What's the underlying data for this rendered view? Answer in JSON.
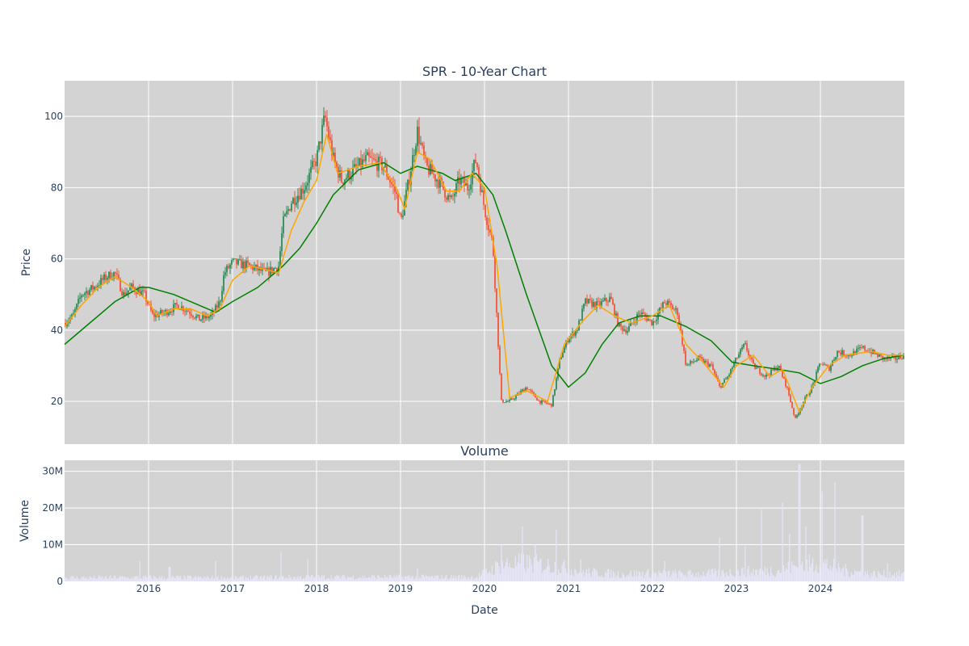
{
  "chart_data": [
    {
      "type": "candlestick",
      "title": "SPR - 10-Year Chart",
      "ylabel": "Price",
      "ylim": [
        8,
        110
      ],
      "yticks": [
        20,
        40,
        60,
        80,
        100
      ],
      "xlim": [
        2015.0,
        2025.0
      ],
      "xticks": [
        "2016",
        "2017",
        "2018",
        "2019",
        "2020",
        "2021",
        "2022",
        "2023",
        "2024"
      ],
      "grid": true,
      "colors": {
        "background": "#d3d3d3",
        "grid": "#ffffff",
        "up": "#2e8b57",
        "down": "#ef553b",
        "sma_short": "#ffa500",
        "sma_long": "#008000"
      },
      "price_path": [
        [
          2015.0,
          42
        ],
        [
          2015.1,
          44
        ],
        [
          2015.2,
          50
        ],
        [
          2015.35,
          52
        ],
        [
          2015.5,
          55
        ],
        [
          2015.6,
          56
        ],
        [
          2015.7,
          50
        ],
        [
          2015.8,
          52
        ],
        [
          2015.95,
          50
        ],
        [
          2016.05,
          44
        ],
        [
          2016.2,
          45
        ],
        [
          2016.35,
          47
        ],
        [
          2016.5,
          45
        ],
        [
          2016.6,
          43
        ],
        [
          2016.75,
          44
        ],
        [
          2016.85,
          48
        ],
        [
          2016.9,
          56
        ],
        [
          2017.0,
          59
        ],
        [
          2017.2,
          58
        ],
        [
          2017.4,
          56
        ],
        [
          2017.55,
          58
        ],
        [
          2017.6,
          70
        ],
        [
          2017.7,
          76
        ],
        [
          2017.85,
          80
        ],
        [
          2018.0,
          88
        ],
        [
          2018.1,
          100
        ],
        [
          2018.2,
          88
        ],
        [
          2018.3,
          82
        ],
        [
          2018.45,
          85
        ],
        [
          2018.6,
          88
        ],
        [
          2018.8,
          86
        ],
        [
          2018.95,
          78
        ],
        [
          2019.0,
          70
        ],
        [
          2019.1,
          82
        ],
        [
          2019.2,
          96
        ],
        [
          2019.3,
          86
        ],
        [
          2019.45,
          82
        ],
        [
          2019.6,
          76
        ],
        [
          2019.7,
          82
        ],
        [
          2019.8,
          80
        ],
        [
          2019.9,
          88
        ],
        [
          2020.0,
          74
        ],
        [
          2020.1,
          64
        ],
        [
          2020.2,
          20
        ],
        [
          2020.3,
          20
        ],
        [
          2020.4,
          22
        ],
        [
          2020.5,
          24
        ],
        [
          2020.65,
          20
        ],
        [
          2020.8,
          19
        ],
        [
          2020.9,
          32
        ],
        [
          2021.0,
          38
        ],
        [
          2021.1,
          40
        ],
        [
          2021.2,
          48
        ],
        [
          2021.35,
          47
        ],
        [
          2021.5,
          49
        ],
        [
          2021.6,
          41
        ],
        [
          2021.7,
          40
        ],
        [
          2021.85,
          45
        ],
        [
          2022.0,
          42
        ],
        [
          2022.15,
          48
        ],
        [
          2022.3,
          45
        ],
        [
          2022.4,
          30
        ],
        [
          2022.55,
          32
        ],
        [
          2022.7,
          30
        ],
        [
          2022.8,
          24
        ],
        [
          2022.9,
          27
        ],
        [
          2023.0,
          32
        ],
        [
          2023.1,
          36
        ],
        [
          2023.2,
          30
        ],
        [
          2023.35,
          27
        ],
        [
          2023.5,
          30
        ],
        [
          2023.6,
          24
        ],
        [
          2023.7,
          15
        ],
        [
          2023.8,
          20
        ],
        [
          2023.9,
          24
        ],
        [
          2024.0,
          31
        ],
        [
          2024.1,
          29
        ],
        [
          2024.2,
          34
        ],
        [
          2024.35,
          33
        ],
        [
          2024.5,
          35
        ],
        [
          2024.6,
          34
        ],
        [
          2024.75,
          32
        ],
        [
          2024.9,
          32
        ],
        [
          2025.0,
          33
        ]
      ],
      "sma_short_path": [
        [
          2015.0,
          41
        ],
        [
          2015.2,
          47
        ],
        [
          2015.4,
          52
        ],
        [
          2015.6,
          55
        ],
        [
          2015.8,
          52
        ],
        [
          2016.0,
          48
        ],
        [
          2016.1,
          44
        ],
        [
          2016.3,
          46
        ],
        [
          2016.5,
          46
        ],
        [
          2016.7,
          44
        ],
        [
          2016.85,
          46
        ],
        [
          2017.0,
          54
        ],
        [
          2017.2,
          58
        ],
        [
          2017.4,
          57
        ],
        [
          2017.55,
          56
        ],
        [
          2017.7,
          68
        ],
        [
          2017.85,
          76
        ],
        [
          2018.0,
          82
        ],
        [
          2018.12,
          95
        ],
        [
          2018.25,
          84
        ],
        [
          2018.5,
          86
        ],
        [
          2018.75,
          87
        ],
        [
          2018.95,
          80
        ],
        [
          2019.05,
          74
        ],
        [
          2019.2,
          90
        ],
        [
          2019.35,
          88
        ],
        [
          2019.55,
          79
        ],
        [
          2019.7,
          79
        ],
        [
          2019.85,
          84
        ],
        [
          2020.0,
          80
        ],
        [
          2020.15,
          58
        ],
        [
          2020.3,
          21
        ],
        [
          2020.5,
          23
        ],
        [
          2020.75,
          20
        ],
        [
          2020.95,
          36
        ],
        [
          2021.15,
          42
        ],
        [
          2021.35,
          47
        ],
        [
          2021.55,
          44
        ],
        [
          2021.75,
          42
        ],
        [
          2022.0,
          44
        ],
        [
          2022.2,
          47
        ],
        [
          2022.4,
          36
        ],
        [
          2022.6,
          31
        ],
        [
          2022.85,
          24
        ],
        [
          2023.0,
          30
        ],
        [
          2023.2,
          33
        ],
        [
          2023.4,
          27
        ],
        [
          2023.55,
          29
        ],
        [
          2023.75,
          17
        ],
        [
          2023.9,
          24
        ],
        [
          2024.1,
          30
        ],
        [
          2024.3,
          33
        ],
        [
          2024.6,
          34
        ],
        [
          2024.8,
          33
        ],
        [
          2025.0,
          33
        ]
      ],
      "sma_long_path": [
        [
          2015.0,
          36
        ],
        [
          2015.3,
          42
        ],
        [
          2015.6,
          48
        ],
        [
          2015.9,
          52
        ],
        [
          2016.0,
          52
        ],
        [
          2016.3,
          50
        ],
        [
          2016.6,
          47
        ],
        [
          2016.8,
          45
        ],
        [
          2017.0,
          48
        ],
        [
          2017.3,
          52
        ],
        [
          2017.6,
          58
        ],
        [
          2017.8,
          63
        ],
        [
          2018.0,
          70
        ],
        [
          2018.2,
          78
        ],
        [
          2018.5,
          85
        ],
        [
          2018.8,
          87
        ],
        [
          2019.0,
          84
        ],
        [
          2019.2,
          86
        ],
        [
          2019.5,
          84
        ],
        [
          2019.65,
          82
        ],
        [
          2019.9,
          84
        ],
        [
          2020.1,
          78
        ],
        [
          2020.25,
          68
        ],
        [
          2020.5,
          50
        ],
        [
          2020.8,
          30
        ],
        [
          2021.0,
          24
        ],
        [
          2021.2,
          28
        ],
        [
          2021.4,
          36
        ],
        [
          2021.6,
          42
        ],
        [
          2021.85,
          44
        ],
        [
          2022.1,
          44
        ],
        [
          2022.4,
          41
        ],
        [
          2022.7,
          37
        ],
        [
          2022.95,
          31
        ],
        [
          2023.2,
          30
        ],
        [
          2023.5,
          29
        ],
        [
          2023.75,
          28
        ],
        [
          2024.0,
          25
        ],
        [
          2024.25,
          27
        ],
        [
          2024.5,
          30
        ],
        [
          2024.75,
          32
        ],
        [
          2025.0,
          33
        ]
      ]
    },
    {
      "type": "bar",
      "title": "Volume",
      "xlabel": "Date",
      "ylabel": "Volume",
      "ylim": [
        0,
        33000000
      ],
      "yticks": [
        0,
        10000000,
        20000000,
        30000000
      ],
      "ytick_labels": [
        "0",
        "10M",
        "20M",
        "30M"
      ],
      "xlim": [
        2015.0,
        2025.0
      ],
      "xticks": [
        "2016",
        "2017",
        "2018",
        "2019",
        "2020",
        "2021",
        "2022",
        "2023",
        "2024"
      ],
      "grid": true,
      "colors": {
        "background": "#d3d3d3",
        "grid": "#ffffff",
        "bar": "#e6e6fa"
      },
      "baseline_by_period": [
        [
          2015.0,
          1000000
        ],
        [
          2016.0,
          1100000
        ],
        [
          2017.0,
          1000000
        ],
        [
          2018.0,
          1200000
        ],
        [
          2019.0,
          1200000
        ],
        [
          2019.9,
          1200000
        ],
        [
          2020.2,
          4500000
        ],
        [
          2020.5,
          5000000
        ],
        [
          2020.9,
          4000000
        ],
        [
          2021.2,
          2500000
        ],
        [
          2021.6,
          2000000
        ],
        [
          2022.0,
          2200000
        ],
        [
          2022.5,
          2000000
        ],
        [
          2023.0,
          2500000
        ],
        [
          2023.5,
          3000000
        ],
        [
          2023.8,
          4500000
        ],
        [
          2024.0,
          5000000
        ],
        [
          2024.3,
          3000000
        ],
        [
          2024.6,
          2000000
        ],
        [
          2025.0,
          2000000
        ]
      ],
      "spikes": [
        [
          2015.9,
          5500000
        ],
        [
          2016.25,
          4000000
        ],
        [
          2016.8,
          5500000
        ],
        [
          2017.58,
          8000000
        ],
        [
          2017.9,
          6000000
        ],
        [
          2019.2,
          3500000
        ],
        [
          2020.2,
          10000000
        ],
        [
          2020.45,
          15000000
        ],
        [
          2020.6,
          10000000
        ],
        [
          2020.85,
          14000000
        ],
        [
          2021.15,
          6000000
        ],
        [
          2022.15,
          5500000
        ],
        [
          2022.8,
          12000000
        ],
        [
          2023.1,
          9500000
        ],
        [
          2023.3,
          19500000
        ],
        [
          2023.55,
          21500000
        ],
        [
          2023.63,
          13000000
        ],
        [
          2023.75,
          32000000
        ],
        [
          2023.83,
          15000000
        ],
        [
          2024.02,
          24500000
        ],
        [
          2024.17,
          27000000
        ],
        [
          2024.5,
          18000000
        ],
        [
          2024.8,
          5000000
        ]
      ]
    }
  ]
}
